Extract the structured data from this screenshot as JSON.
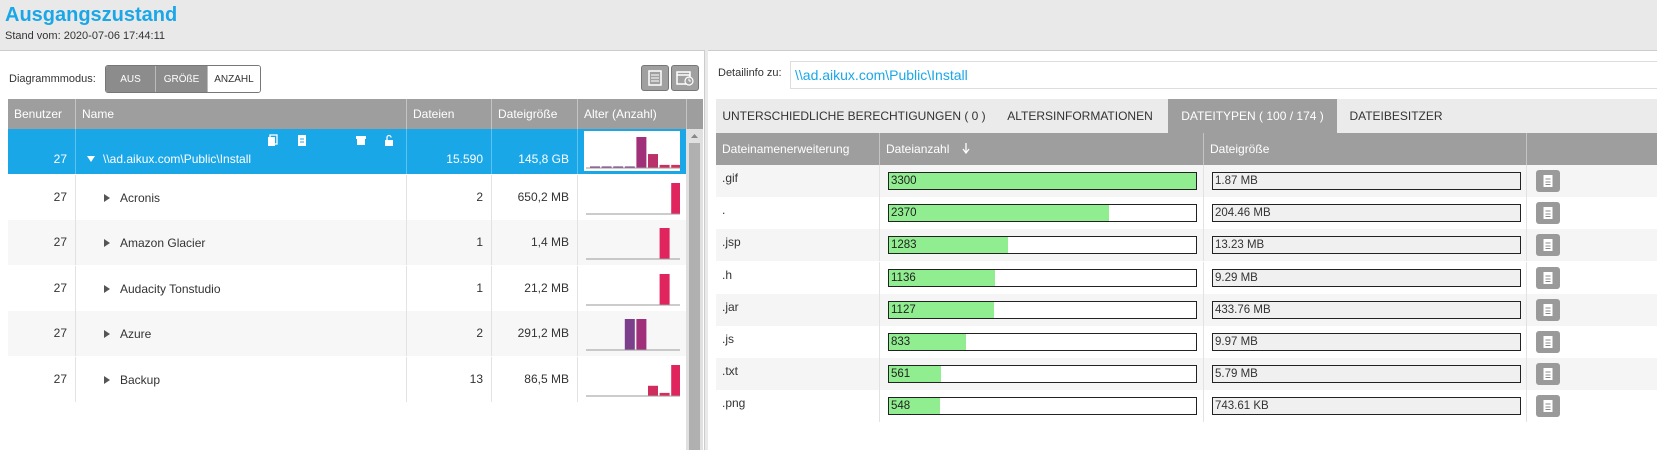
{
  "header": {
    "title": "Ausgangszustand",
    "subtitle": "Stand vom: 2020-07-06 17:44:11"
  },
  "left": {
    "diagram_mode_label": "Diagrammmodus:",
    "mode_options": [
      "AUS",
      "GRÖßE",
      "ANZAHL"
    ],
    "active_mode": "ANZAHL",
    "columns": {
      "users": "Benutzer",
      "name": "Name",
      "files": "Dateien",
      "size": "Dateigröße",
      "age": "Alter (Anzahl)"
    },
    "rows": [
      {
        "users": "27",
        "name": "\\\\ad.aikux.com\\Public\\Install",
        "files": "15.590",
        "size": "145,8 GB",
        "expanded": true,
        "selected": true,
        "age_bars": [
          {
            "h": 0.05,
            "c": "#7b3f8c"
          },
          {
            "h": 0.05,
            "c": "#7b3f8c"
          },
          {
            "h": 0.05,
            "c": "#7b3f8c"
          },
          {
            "h": 0.05,
            "c": "#7b3f8c"
          },
          {
            "h": 1.0,
            "c": "#a0307a"
          },
          {
            "h": 0.45,
            "c": "#b9306a"
          },
          {
            "h": 0.1,
            "c": "#cf2d5e"
          },
          {
            "h": 0.1,
            "c": "#dd2a58"
          }
        ]
      },
      {
        "users": "27",
        "name": "Acronis",
        "files": "2",
        "size": "650,2 MB",
        "expanded": false,
        "selected": false,
        "age_bars": [
          {
            "h": 0,
            "c": "#7b3f8c"
          },
          {
            "h": 0,
            "c": "#7b3f8c"
          },
          {
            "h": 0,
            "c": "#7b3f8c"
          },
          {
            "h": 0,
            "c": "#7b3f8c"
          },
          {
            "h": 0,
            "c": "#a0307a"
          },
          {
            "h": 0,
            "c": "#b9306a"
          },
          {
            "h": 0,
            "c": "#cf2d5e"
          },
          {
            "h": 1.0,
            "c": "#e0245e"
          }
        ]
      },
      {
        "users": "27",
        "name": "Amazon Glacier",
        "files": "1",
        "size": "1,4 MB",
        "expanded": false,
        "selected": false,
        "age_bars": [
          {
            "h": 0,
            "c": "#7b3f8c"
          },
          {
            "h": 0,
            "c": "#7b3f8c"
          },
          {
            "h": 0,
            "c": "#7b3f8c"
          },
          {
            "h": 0,
            "c": "#7b3f8c"
          },
          {
            "h": 0,
            "c": "#a0307a"
          },
          {
            "h": 0,
            "c": "#b9306a"
          },
          {
            "h": 1.0,
            "c": "#e0245e"
          },
          {
            "h": 0,
            "c": "#dd2a58"
          }
        ]
      },
      {
        "users": "27",
        "name": "Audacity Tonstudio",
        "files": "1",
        "size": "21,2 MB",
        "expanded": false,
        "selected": false,
        "age_bars": [
          {
            "h": 0,
            "c": "#7b3f8c"
          },
          {
            "h": 0,
            "c": "#7b3f8c"
          },
          {
            "h": 0,
            "c": "#7b3f8c"
          },
          {
            "h": 0,
            "c": "#7b3f8c"
          },
          {
            "h": 0,
            "c": "#a0307a"
          },
          {
            "h": 0,
            "c": "#b9306a"
          },
          {
            "h": 1.0,
            "c": "#e0245e"
          },
          {
            "h": 0,
            "c": "#dd2a58"
          }
        ]
      },
      {
        "users": "27",
        "name": "Azure",
        "files": "2",
        "size": "291,2 MB",
        "expanded": false,
        "selected": false,
        "age_bars": [
          {
            "h": 0,
            "c": "#7b3f8c"
          },
          {
            "h": 0,
            "c": "#7b3f8c"
          },
          {
            "h": 0,
            "c": "#7b3f8c"
          },
          {
            "h": 1.0,
            "c": "#7b3f8c"
          },
          {
            "h": 1.0,
            "c": "#a0307a"
          },
          {
            "h": 0,
            "c": "#b9306a"
          },
          {
            "h": 0,
            "c": "#cf2d5e"
          },
          {
            "h": 0,
            "c": "#dd2a58"
          }
        ]
      },
      {
        "users": "27",
        "name": "Backup",
        "files": "13",
        "size": "86,5 MB",
        "expanded": false,
        "selected": false,
        "age_bars": [
          {
            "h": 0,
            "c": "#7b3f8c"
          },
          {
            "h": 0,
            "c": "#7b3f8c"
          },
          {
            "h": 0,
            "c": "#7b3f8c"
          },
          {
            "h": 0,
            "c": "#7b3f8c"
          },
          {
            "h": 0,
            "c": "#a0307a"
          },
          {
            "h": 0.33,
            "c": "#cf2d5e"
          },
          {
            "h": 0.1,
            "c": "#dd2a58"
          },
          {
            "h": 1.0,
            "c": "#e0245e"
          }
        ]
      }
    ]
  },
  "right": {
    "detail_label": "Detailinfo zu:",
    "detail_path": "\\\\ad.aikux.com\\Public\\Install",
    "tabs": [
      {
        "label": "UNTERSCHIEDLICHE BERECHTIGUNGEN  ( 0 )",
        "active": false
      },
      {
        "label": "ALTERSINFORMATIONEN",
        "active": false
      },
      {
        "label": "DATEITYPEN ( 100 / 174 )",
        "active": true
      },
      {
        "label": "DATEIBESITZER",
        "active": false
      }
    ],
    "columns": {
      "ext": "Dateinamenerweiterung",
      "count": "Dateianzahl",
      "count_sort_icon": "arrow-down-icon",
      "size": "Dateigröße"
    },
    "max_count": 3300,
    "rows": [
      {
        "ext": ".gif",
        "count": "3300",
        "count_value": 3300,
        "size": "1.87 MB"
      },
      {
        "ext": ".",
        "count": "2370",
        "count_value": 2370,
        "size": "204.46 MB"
      },
      {
        "ext": ".jsp",
        "count": "1283",
        "count_value": 1283,
        "size": "13.23 MB"
      },
      {
        "ext": ".h",
        "count": "1136",
        "count_value": 1136,
        "size": "9.29 MB"
      },
      {
        "ext": ".jar",
        "count": "1127",
        "count_value": 1127,
        "size": "433.76 MB"
      },
      {
        "ext": ".js",
        "count": "833",
        "count_value": 833,
        "size": "9.97 MB"
      },
      {
        "ext": ".txt",
        "count": "561",
        "count_value": 561,
        "size": "5.79 MB"
      },
      {
        "ext": ".png",
        "count": "548",
        "count_value": 548,
        "size": "743.61 KB"
      }
    ]
  },
  "colors": {
    "accent": "#1aa7e8",
    "header_gray": "#9e9e9e",
    "bar_green": "#90ee90",
    "row_selected": "#1aa7e8"
  }
}
